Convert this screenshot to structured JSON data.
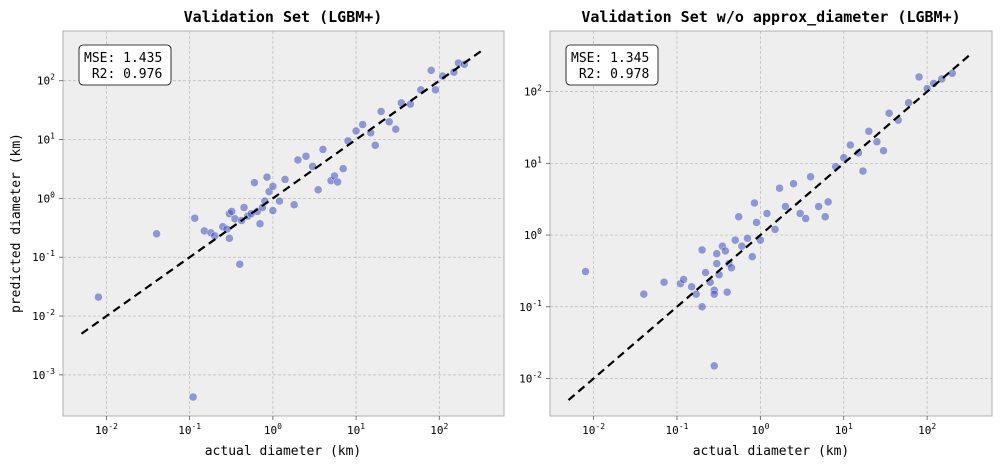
{
  "chart_data": [
    {
      "type": "scatter",
      "title": "Validation Set (LGBM+)",
      "xlabel": "actual diameter (km)",
      "ylabel": "predicted diameter (km)",
      "x_scale": "log",
      "y_scale": "log",
      "xlim": [
        0.003,
        600
      ],
      "ylim": [
        0.0002,
        700
      ],
      "x_ticks": [
        "10^-2",
        "10^-1",
        "10^0",
        "10^1",
        "10^2"
      ],
      "y_ticks": [
        "10^-3",
        "10^-2",
        "10^-1",
        "10^0",
        "10^1",
        "10^2"
      ],
      "grid": true,
      "reference_line": {
        "style": "dashed",
        "color": "#000000",
        "x": [
          0.005,
          350
        ],
        "y": [
          0.005,
          350
        ]
      },
      "annotation": [
        "MSE: 1.435",
        " R2: 0.976"
      ],
      "annotation_position": "top-left",
      "point_color": "#3f4fbf",
      "series": [
        {
          "points": [
            [
              0.008,
              0.021
            ],
            [
              0.04,
              0.25
            ],
            [
              0.11,
              0.00042
            ],
            [
              0.115,
              0.46
            ],
            [
              0.15,
              0.28
            ],
            [
              0.18,
              0.26
            ],
            [
              0.2,
              0.23
            ],
            [
              0.25,
              0.33
            ],
            [
              0.28,
              0.3
            ],
            [
              0.3,
              0.21
            ],
            [
              0.3,
              0.55
            ],
            [
              0.32,
              0.6
            ],
            [
              0.35,
              0.45
            ],
            [
              0.4,
              0.076
            ],
            [
              0.42,
              0.42
            ],
            [
              0.45,
              0.7
            ],
            [
              0.5,
              0.5
            ],
            [
              0.55,
              0.55
            ],
            [
              0.6,
              1.85
            ],
            [
              0.65,
              0.6
            ],
            [
              0.7,
              0.37
            ],
            [
              0.75,
              0.7
            ],
            [
              0.8,
              0.9
            ],
            [
              0.85,
              2.3
            ],
            [
              0.9,
              1.3
            ],
            [
              1.0,
              0.62
            ],
            [
              1.0,
              1.6
            ],
            [
              1.2,
              0.9
            ],
            [
              1.4,
              2.1
            ],
            [
              1.8,
              0.78
            ],
            [
              2.0,
              4.5
            ],
            [
              2.5,
              5.2
            ],
            [
              3.0,
              3.5
            ],
            [
              3.5,
              1.4
            ],
            [
              4.0,
              6.8
            ],
            [
              5.0,
              2.0
            ],
            [
              5.5,
              2.4
            ],
            [
              6.0,
              1.9
            ],
            [
              7.0,
              3.2
            ],
            [
              8.0,
              9.5
            ],
            [
              10.0,
              14.0
            ],
            [
              12.0,
              18.0
            ],
            [
              15.0,
              13.0
            ],
            [
              17.0,
              8.0
            ],
            [
              20.0,
              30.0
            ],
            [
              25.0,
              20.0
            ],
            [
              30.0,
              15.0
            ],
            [
              35.0,
              42.0
            ],
            [
              45.0,
              40.0
            ],
            [
              60.0,
              70.0
            ],
            [
              80.0,
              150.0
            ],
            [
              90.0,
              70.0
            ],
            [
              110.0,
              120.0
            ],
            [
              150.0,
              140.0
            ],
            [
              170.0,
              200.0
            ],
            [
              200.0,
              190.0
            ]
          ]
        }
      ]
    },
    {
      "type": "scatter",
      "title": "Validation Set w/o approx_diameter (LGBM+)",
      "xlabel": "actual diameter (km)",
      "ylabel": "",
      "x_scale": "log",
      "y_scale": "log",
      "xlim": [
        0.003,
        600
      ],
      "ylim": [
        0.003,
        700
      ],
      "x_ticks": [
        "10^-2",
        "10^-1",
        "10^0",
        "10^1",
        "10^2"
      ],
      "y_ticks": [
        "10^-2",
        "10^-1",
        "10^0",
        "10^1",
        "10^2"
      ],
      "grid": true,
      "reference_line": {
        "style": "dashed",
        "color": "#000000",
        "x": [
          0.005,
          350
        ],
        "y": [
          0.005,
          350
        ]
      },
      "annotation": [
        "MSE: 1.345",
        " R2: 0.978"
      ],
      "annotation_position": "top-left",
      "point_color": "#3f4fbf",
      "series": [
        {
          "points": [
            [
              0.008,
              0.31
            ],
            [
              0.04,
              0.15
            ],
            [
              0.07,
              0.22
            ],
            [
              0.11,
              0.21
            ],
            [
              0.12,
              0.24
            ],
            [
              0.15,
              0.19
            ],
            [
              0.17,
              0.15
            ],
            [
              0.2,
              0.62
            ],
            [
              0.2,
              0.1
            ],
            [
              0.22,
              0.3
            ],
            [
              0.25,
              0.22
            ],
            [
              0.28,
              0.015
            ],
            [
              0.28,
              0.17
            ],
            [
              0.28,
              0.15
            ],
            [
              0.3,
              0.4
            ],
            [
              0.3,
              0.55
            ],
            [
              0.32,
              0.28
            ],
            [
              0.35,
              0.7
            ],
            [
              0.38,
              0.6
            ],
            [
              0.4,
              0.16
            ],
            [
              0.42,
              0.4
            ],
            [
              0.45,
              0.35
            ],
            [
              0.5,
              0.85
            ],
            [
              0.55,
              1.8
            ],
            [
              0.6,
              0.7
            ],
            [
              0.7,
              0.9
            ],
            [
              0.8,
              0.5
            ],
            [
              0.85,
              2.8
            ],
            [
              0.9,
              1.5
            ],
            [
              1.0,
              0.85
            ],
            [
              1.2,
              2.0
            ],
            [
              1.5,
              1.2
            ],
            [
              1.7,
              4.5
            ],
            [
              2.0,
              2.5
            ],
            [
              2.5,
              5.2
            ],
            [
              3.0,
              2.0
            ],
            [
              3.5,
              1.7
            ],
            [
              4.0,
              6.5
            ],
            [
              5.0,
              2.5
            ],
            [
              6.0,
              1.8
            ],
            [
              6.5,
              2.9
            ],
            [
              8.0,
              9.0
            ],
            [
              10.0,
              12.0
            ],
            [
              12.0,
              18.0
            ],
            [
              15.0,
              14.0
            ],
            [
              17.0,
              7.8
            ],
            [
              20.0,
              28.0
            ],
            [
              25.0,
              20.0
            ],
            [
              30.0,
              15.0
            ],
            [
              35.0,
              50.0
            ],
            [
              45.0,
              40.0
            ],
            [
              60.0,
              70.0
            ],
            [
              80.0,
              160.0
            ],
            [
              100.0,
              110.0
            ],
            [
              120.0,
              130.0
            ],
            [
              150.0,
              150.0
            ],
            [
              200.0,
              180.0
            ]
          ]
        }
      ]
    }
  ]
}
